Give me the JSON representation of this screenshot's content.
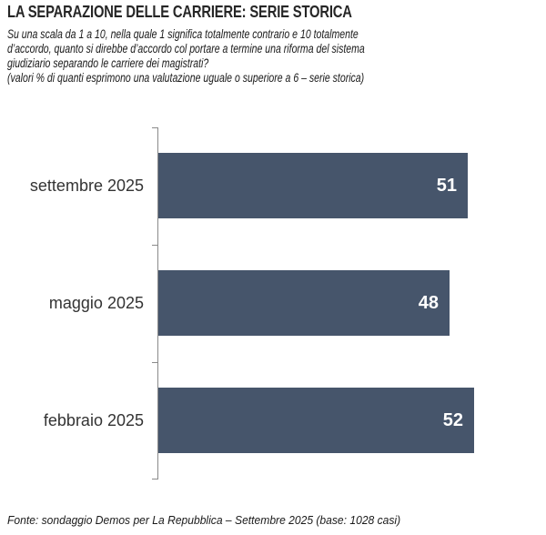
{
  "header": {
    "title": "LA SEPARAZIONE DELLE CARRIERE: SERIE STORICA",
    "subtitle_lines": [
      "Su una scala da 1 a 10, nella quale 1 significa totalmente contrario e 10 totalmente",
      "d’accordo, quanto si direbbe d’accordo col portare a termine una riforma del sistema",
      "giudiziario separando le carriere dei magistrati?",
      "(valori % di quanti esprimono una valutazione uguale o superiore a 6 – serie storica)"
    ]
  },
  "chart_data": {
    "type": "bar",
    "orientation": "horizontal",
    "title": "LA SEPARAZIONE DELLE CARRIERE: SERIE STORICA",
    "categories": [
      "settembre 2025",
      "maggio 2025",
      "febbraio 2025"
    ],
    "values": [
      51,
      48,
      52
    ],
    "xlabel": "",
    "ylabel": "",
    "xlim": [
      0,
      60
    ],
    "grid": false,
    "legend": false,
    "value_labels": "inside-end",
    "bar_color": "#46556b",
    "value_label_color": "#ffffff",
    "axis_color": "#8a8a8a"
  },
  "footer": {
    "source": "Fonte: sondaggio Demos per La Repubblica – Settembre 2025 (base: 1028 casi)"
  }
}
